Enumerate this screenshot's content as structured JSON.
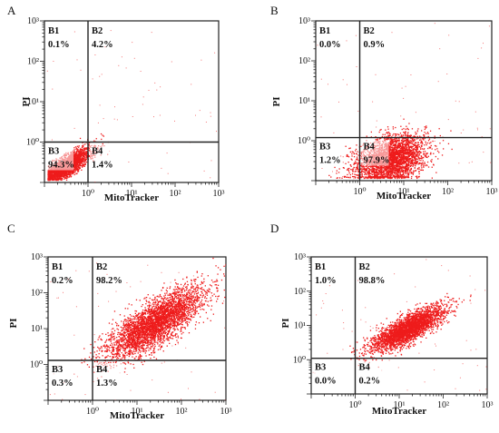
{
  "chart_data": [
    {
      "type": "scatter",
      "panel_label": "A",
      "xlabel": "MitoTracker",
      "ylabel": "PI",
      "x_scale": "log",
      "y_scale": "log",
      "xlim": [
        0.1,
        1000
      ],
      "ylim": [
        0.1,
        1000
      ],
      "x_ticks": [
        "10⁰",
        "10¹",
        "10²",
        "10³"
      ],
      "y_ticks": [
        "10⁰",
        "10¹",
        "10²",
        "10³"
      ],
      "gate": {
        "x": 1.0,
        "y": 1.0
      },
      "quadrants": [
        {
          "name": "B1",
          "percent": "0.1%"
        },
        {
          "name": "B2",
          "percent": "4.2%"
        },
        {
          "name": "B3",
          "percent": "94.3%"
        },
        {
          "name": "B4",
          "percent": "1.4%"
        }
      ],
      "point_color": "#ee1c1c",
      "population": {
        "center_x": 0.3,
        "center_y": 0.25,
        "spread": "tight, diagonal tail toward upper right"
      }
    },
    {
      "type": "scatter",
      "panel_label": "B",
      "xlabel": "MitoTracker",
      "ylabel": "PI",
      "x_scale": "log",
      "y_scale": "log",
      "xlim": [
        0.1,
        1000
      ],
      "ylim": [
        0.1,
        1000
      ],
      "x_ticks": [
        "10⁰",
        "10¹",
        "10²",
        "10³"
      ],
      "y_ticks": [
        "10⁰",
        "10¹",
        "10²",
        "10³"
      ],
      "gate": {
        "x": 1.0,
        "y": 1.2
      },
      "quadrants": [
        {
          "name": "B1",
          "percent": "0.0%"
        },
        {
          "name": "B2",
          "percent": "0.9%"
        },
        {
          "name": "B3",
          "percent": "1.2%"
        },
        {
          "name": "B4",
          "percent": "97.9%"
        }
      ],
      "point_color": "#ee1c1c",
      "population": {
        "center_x": 5,
        "center_y": 0.35,
        "spread": "dense, below PI gate"
      }
    },
    {
      "type": "scatter",
      "panel_label": "C",
      "xlabel": "MitoTracker",
      "ylabel": "PI",
      "x_scale": "log",
      "y_scale": "log",
      "xlim": [
        0.1,
        1000
      ],
      "ylim": [
        0.1,
        1000
      ],
      "x_ticks": [
        "10⁰",
        "10¹",
        "10²",
        "10³"
      ],
      "y_ticks": [
        "10⁰",
        "10¹",
        "10²",
        "10³"
      ],
      "gate": {
        "x": 1.0,
        "y": 1.3
      },
      "quadrants": [
        {
          "name": "B1",
          "percent": "0.2%"
        },
        {
          "name": "B2",
          "percent": "98.2%"
        },
        {
          "name": "B3",
          "percent": "0.3%"
        },
        {
          "name": "B4",
          "percent": "1.3%"
        }
      ],
      "point_color": "#ee1c1c",
      "population": {
        "center_x": 25,
        "center_y": 15,
        "spread": "broad, diagonal"
      }
    },
    {
      "type": "scatter",
      "panel_label": "D",
      "xlabel": "MitoTracker",
      "ylabel": "PI",
      "x_scale": "log",
      "y_scale": "log",
      "xlim": [
        0.1,
        1000
      ],
      "ylim": [
        0.1,
        1000
      ],
      "x_ticks": [
        "10⁰",
        "10¹",
        "10²",
        "10³"
      ],
      "y_ticks": [
        "10⁰",
        "10¹",
        "10²",
        "10³"
      ],
      "gate": {
        "x": 1.0,
        "y": 1.1
      },
      "quadrants": [
        {
          "name": "B1",
          "percent": "1.0%"
        },
        {
          "name": "B2",
          "percent": "98.8%"
        },
        {
          "name": "B3",
          "percent": "0.0%"
        },
        {
          "name": "B4",
          "percent": "0.2%"
        }
      ],
      "point_color": "#ee1c1c",
      "population": {
        "center_x": 15,
        "center_y": 8,
        "spread": "compact, diagonal"
      }
    }
  ]
}
